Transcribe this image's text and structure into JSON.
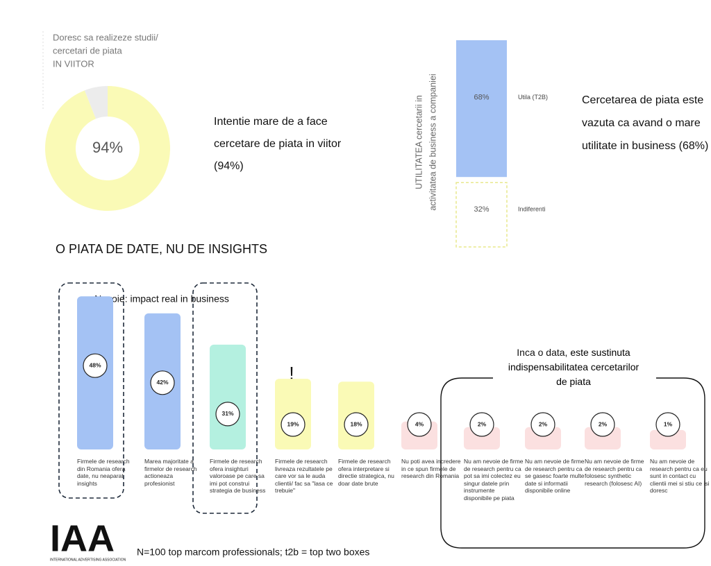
{
  "chart_data": [
    {
      "type": "pie",
      "title": [
        "Doresc sa realizeze studii/",
        "cercetari de piata",
        "IN VIITOR"
      ],
      "values": [
        94,
        6
      ],
      "value_labels": [
        "94%",
        null
      ],
      "colors": [
        "#fafab6",
        "#ececec"
      ],
      "annotation": "Intentie mare de a face cercetare de piata in viitor (94%)"
    },
    {
      "type": "stacked-bar",
      "ylabel": [
        "UTILITATEA cercetarii in",
        "activitatea de business a companiei"
      ],
      "series": [
        {
          "name": "Utila (T2B)",
          "color": "#a4c2f4",
          "values": [
            68
          ],
          "value_labels": [
            "68%"
          ]
        },
        {
          "name": "Indiferenti",
          "color": "#e8e88c",
          "values": [
            32
          ],
          "value_labels": [
            "32%"
          ]
        }
      ],
      "annotation": "Cercetarea de piata este vazuta ca avand o mare utilitate in business (68%)"
    },
    {
      "type": "bar",
      "title": "O PIATA DE DATE, NU DE INSIGHTS",
      "categories": [
        "Firmele de research din Romania ofera date, nu neaparat insights",
        "Marea majoritate a firmelor de research actioneaza profesionist",
        "Firmele de research ofera insighturi valoroase pe care sa imi pot construi strategia de business",
        "Firmele de research livreaza rezultatele pe care vor sa le auda clientii/ fac sa \"lasa ce trebuie\"",
        "Firmele de research ofera interpretare si directie strategica, nu doar date brute",
        "Nu poti avea incredere in ce spun firmele de research din Romania",
        "Nu am nevoie de firme de research pentru ca pot sa imi colectez eu singur datele prin instrumente disponibile pe piata",
        "Nu am nevoie de firme de research pentru ca se gasesc foarte multe date si informatii disponibile online",
        "Nu am nevoie de firme de research pentru ca folosesc synthetic research (folosesc AI)",
        "Nu am nevoie  de research pentru ca eu sunt in contact cu clientii mei si stiu ce isi doresc"
      ],
      "values": [
        48,
        42,
        31,
        19,
        18,
        4,
        2,
        2,
        2,
        1
      ],
      "value_labels": [
        "48%",
        "42%",
        "31%",
        "19%",
        "18%",
        "4%",
        "2%",
        "2%",
        "2%",
        "1%"
      ],
      "colors": [
        "#a4c2f4",
        "#a4c2f4",
        "#b4f0e0",
        "#fafab6",
        "#fafab6",
        "#fbe0e0",
        "#fbe0e0",
        "#fbe0e0",
        "#fbe0e0",
        "#fbe0e0"
      ],
      "annotations": {
        "need": "Nevoie: impact real in business",
        "alert": "!",
        "again": "Inca o data,",
        "again_bold": "este sustinuta indispensabilitatea cercetarilor de piata"
      }
    }
  ],
  "footer": {
    "logo": "IAA",
    "logo_caption": "INTERNATIONAL ADVERTISING ASSOCIATION",
    "note": "N=100 top marcom professionals; t2b = top two boxes"
  }
}
